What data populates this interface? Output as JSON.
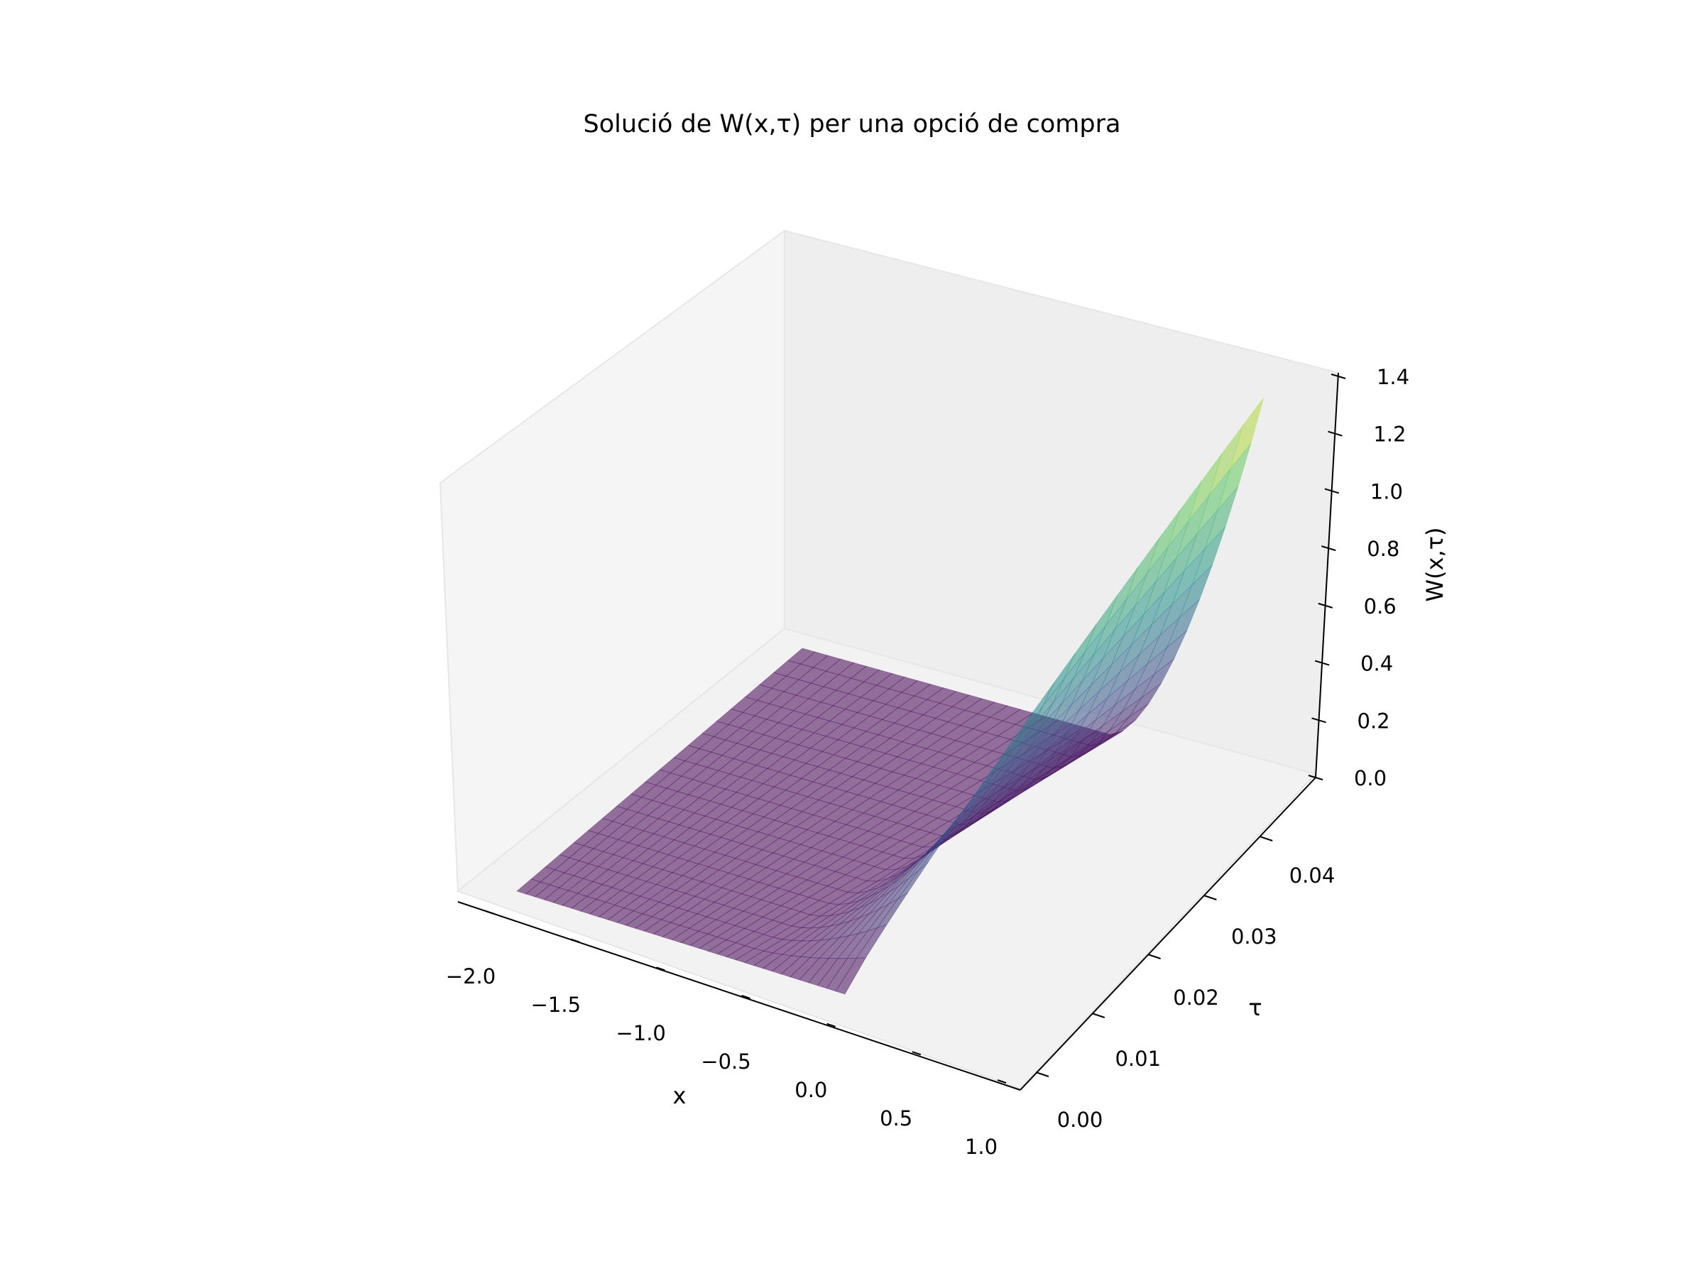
{
  "chart_data": {
    "type": "surface3d",
    "title": "Solució de W(x,τ) per una opció de compra",
    "xlabel": "x",
    "ylabel": "τ",
    "zlabel": "W(x,τ)",
    "xlim": [
      -2.0,
      1.0
    ],
    "ylim": [
      0.0,
      0.05
    ],
    "zlim": [
      0.0,
      1.4
    ],
    "xticks": [
      "−2.0",
      "−1.5",
      "−1.0",
      "−0.5",
      "0.0",
      "0.5",
      "1.0"
    ],
    "yticks": [
      "0.00",
      "0.01",
      "0.02",
      "0.03",
      "0.04"
    ],
    "zticks": [
      "0.0",
      "0.2",
      "0.4",
      "0.6",
      "0.8",
      "1.0",
      "1.2",
      "1.4"
    ],
    "colormap": "viridis",
    "surface_alpha": 0.55,
    "surface_function": "W(x,τ) = 0 for x ≤ 0; W(x,τ) rises with x and τ, peak ≈ 1.35 at x = 1.0, τ = 0.05; W(x,0) ≈ 0",
    "x_grid": [
      -2.0,
      -1.75,
      -1.5,
      -1.25,
      -1.0,
      -0.75,
      -0.5,
      -0.25,
      0.0,
      0.25,
      0.5,
      0.75,
      1.0
    ],
    "tau_grid": [
      0.0,
      0.005,
      0.01,
      0.015,
      0.02,
      0.025,
      0.03,
      0.035,
      0.04,
      0.045,
      0.05
    ],
    "peak": {
      "x": 1.0,
      "tau": 0.05,
      "W": 1.35
    },
    "grid": false
  },
  "colors": {
    "pane_left": "#f5f5f5",
    "pane_back": "#eeeeee",
    "pane_floor": "#f2f2f2",
    "pane_edge": "#e6e6e6",
    "axis_line": "#000000"
  }
}
